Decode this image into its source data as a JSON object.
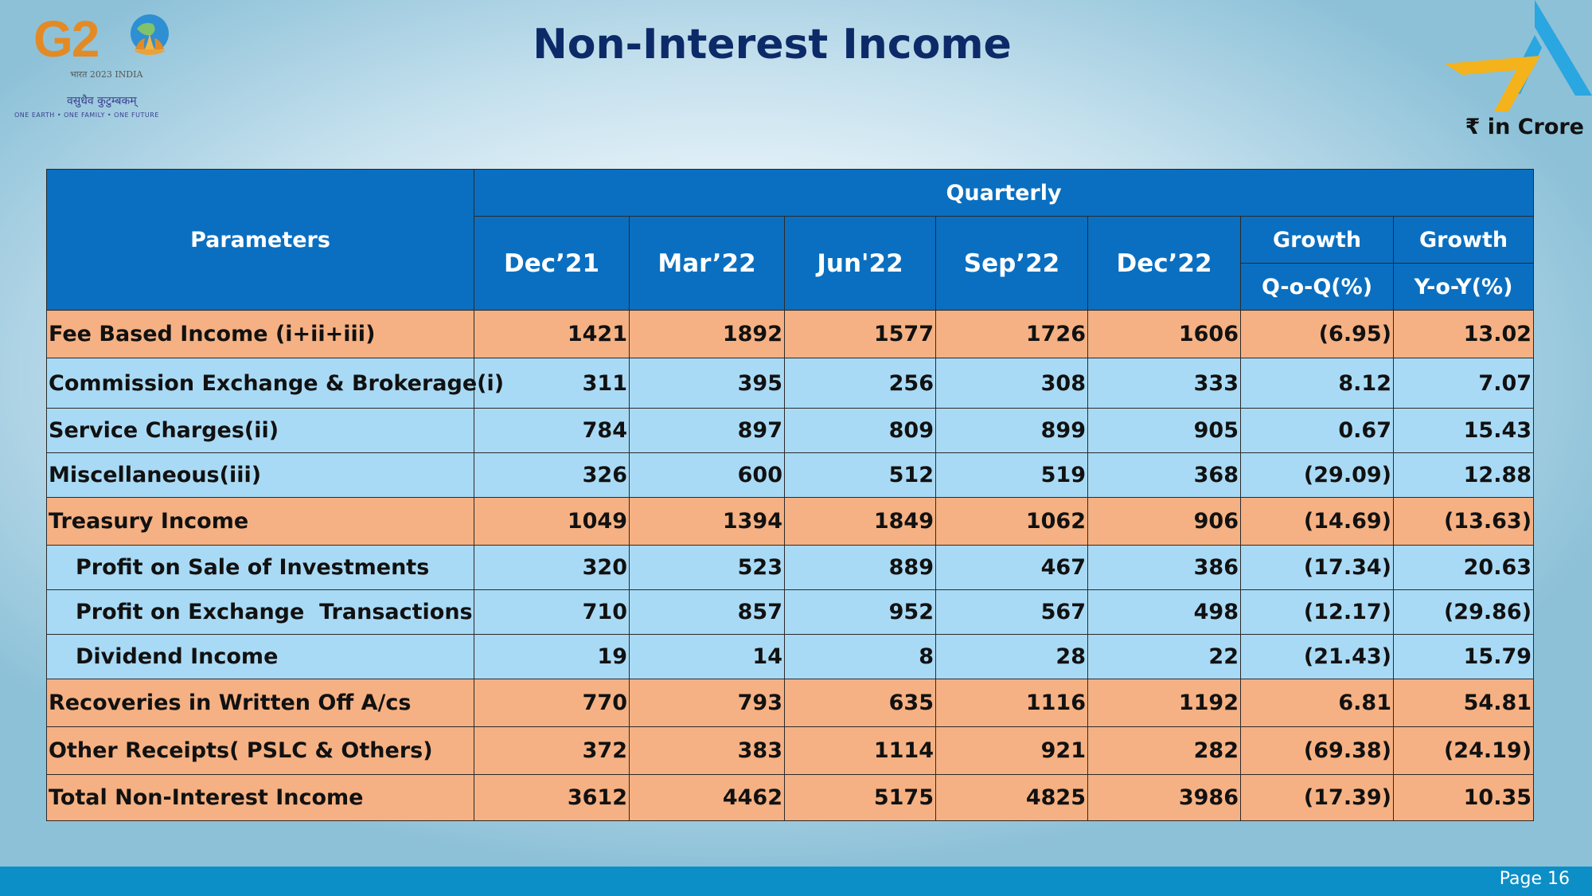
{
  "page_title": "Non-Interest Income",
  "unit_label": "₹ in Crore",
  "g20": {
    "mark": "G2",
    "year_line": "भारत 2023 INDIA",
    "motto_hindi": "वसुधैव कुटुम्बकम्",
    "motto_english": "ONE EARTH • ONE FAMILY • ONE FUTURE"
  },
  "table": {
    "parameters_header": "Parameters",
    "quarterly_header": "Quarterly",
    "periods": [
      "Dec’21",
      "Mar’22",
      "Jun'22",
      "Sep’22",
      "Dec’22"
    ],
    "growth_header": "Growth",
    "qoq_header": "Q-o-Q(%)",
    "yoy_header": "Y-o-Y(%)",
    "rows": [
      {
        "label": "Fee Based Income (i+ii+iii)",
        "values": [
          "1421",
          "1892",
          "1577",
          "1726",
          "1606"
        ],
        "qoq": "(6.95)",
        "yoy": "13.02"
      },
      {
        "label": "Commission Exchange & Brokerage(i)",
        "values": [
          "311",
          "395",
          "256",
          "308",
          "333"
        ],
        "qoq": "8.12",
        "yoy": "7.07"
      },
      {
        "label": "Service Charges(ii)",
        "values": [
          "784",
          "897",
          "809",
          "899",
          "905"
        ],
        "qoq": "0.67",
        "yoy": "15.43"
      },
      {
        "label": "Miscellaneous(iii)",
        "values": [
          "326",
          "600",
          "512",
          "519",
          "368"
        ],
        "qoq": "(29.09)",
        "yoy": "12.88"
      },
      {
        "label": "Treasury Income",
        "values": [
          "1049",
          "1394",
          "1849",
          "1062",
          "906"
        ],
        "qoq": "(14.69)",
        "yoy": "(13.63)"
      },
      {
        "label": "Profit on Sale of Investments",
        "values": [
          "320",
          "523",
          "889",
          "467",
          "386"
        ],
        "qoq": "(17.34)",
        "yoy": "20.63"
      },
      {
        "label": "Profit on Exchange  Transactions",
        "values": [
          "710",
          "857",
          "952",
          "567",
          "498"
        ],
        "qoq": "(12.17)",
        "yoy": "(29.86)"
      },
      {
        "label": "Dividend Income",
        "values": [
          "19",
          "14",
          "8",
          "28",
          "22"
        ],
        "qoq": "(21.43)",
        "yoy": "15.79"
      },
      {
        "label": "Recoveries in Written Off A/cs",
        "values": [
          "770",
          "793",
          "635",
          "1116",
          "1192"
        ],
        "qoq": "6.81",
        "yoy": "54.81"
      },
      {
        "label": "Other Receipts( PSLC & Others)",
        "values": [
          "372",
          "383",
          "1114",
          "921",
          "282"
        ],
        "qoq": "(69.38)",
        "yoy": "(24.19)"
      },
      {
        "label": "Total Non-Interest Income",
        "values": [
          "3612",
          "4462",
          "5175",
          "4825",
          "3986"
        ],
        "qoq": "(17.39)",
        "yoy": "10.35"
      }
    ]
  },
  "footer": {
    "page_label": "Page 16"
  },
  "colors": {
    "header_blue": "#0a6fc0",
    "row_orange": "#f5b183",
    "row_blue": "#a9daf5",
    "title_navy": "#0d2a68",
    "footer_blue": "#0c8fc7"
  }
}
